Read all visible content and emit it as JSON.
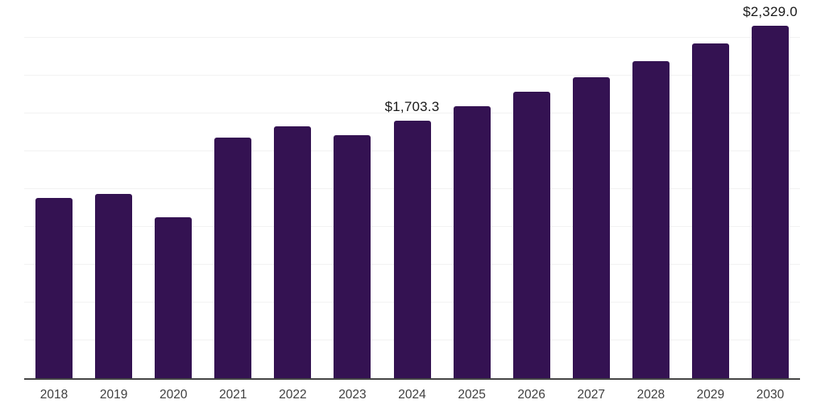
{
  "chart_data": {
    "type": "bar",
    "title": "",
    "xlabel": "",
    "ylabel": "",
    "categories": [
      "2018",
      "2019",
      "2020",
      "2021",
      "2022",
      "2023",
      "2024",
      "2025",
      "2026",
      "2027",
      "2028",
      "2029",
      "2030"
    ],
    "values": [
      1190,
      1218,
      1065,
      1588,
      1667,
      1609,
      1703.3,
      1800,
      1894,
      1989,
      2094,
      2214,
      2329.0
    ],
    "data_labels": {
      "2024": "$1,703.3",
      "2030": "$2,329.0"
    },
    "ylim": [
      0,
      2500
    ],
    "gridline_step": 250,
    "grid": "horizontal-only",
    "legend": "none",
    "y_axis_labels_visible": false,
    "colors": {
      "bar": "#341252",
      "axis_line": "#454545",
      "gridline": "#f2f2f2",
      "tick_label": "#3f3f3f",
      "data_label": "#1a1a1a",
      "background": "#ffffff"
    }
  }
}
